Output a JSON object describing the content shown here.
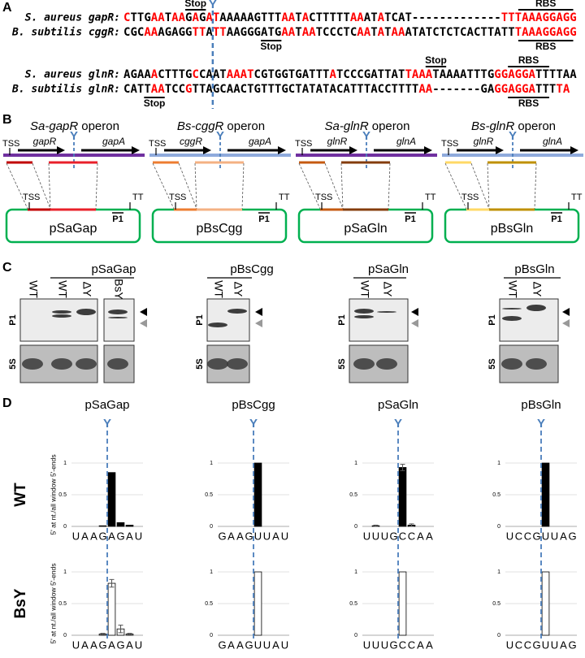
{
  "panel_a": {
    "label": "A",
    "marker": "Y",
    "groups": [
      {
        "rows": [
          {
            "name": "S. aureus gapR:",
            "segments": [
              [
                "C",
                "red"
              ],
              [
                "TTG",
                "black"
              ],
              [
                "AA",
                "red"
              ],
              [
                "T",
                "black"
              ],
              [
                "AA",
                "red"
              ],
              [
                "G",
                "black"
              ],
              [
                "A",
                "red"
              ],
              [
                "G",
                "black"
              ],
              [
                "AT",
                "red"
              ],
              [
                "AAAAAGTTT",
                "black"
              ],
              [
                "AA",
                "red"
              ],
              [
                "T",
                "black"
              ],
              [
                "A",
                "red"
              ],
              [
                "CTTTTT",
                "black"
              ],
              [
                "AA",
                "red"
              ],
              [
                "AT",
                "black"
              ],
              [
                "A",
                "red"
              ],
              [
                "TCAT",
                "black"
              ],
              [
                "-------------",
                "black"
              ],
              [
                "TTTAAAGGAGG",
                "red"
              ]
            ]
          },
          {
            "name": "B. subtilis cggR:",
            "segments": [
              [
                "CGC",
                "black"
              ],
              [
                "AA",
                "red"
              ],
              [
                "AGAGG",
                "black"
              ],
              [
                "TT",
                "red"
              ],
              [
                "A",
                "black"
              ],
              [
                "TT",
                "red"
              ],
              [
                "AAGGGATG",
                "black"
              ],
              [
                "AA",
                "red"
              ],
              [
                "T",
                "black"
              ],
              [
                "AA",
                "red"
              ],
              [
                "TCCCTC",
                "black"
              ],
              [
                "AA",
                "red"
              ],
              [
                "T",
                "black"
              ],
              [
                "A",
                "red"
              ],
              [
                "T",
                "black"
              ],
              [
                "AA",
                "red"
              ],
              [
                "ATATCTCTCACTTATT",
                "black"
              ],
              [
                "TAAAGGAGG",
                "red"
              ]
            ]
          }
        ],
        "annotations": [
          "Stop",
          "RBS",
          "RBS",
          "Stop"
        ]
      },
      {
        "rows": [
          {
            "name": "S. aureus glnR:",
            "segments": [
              [
                "AGAA",
                "black"
              ],
              [
                "A",
                "red"
              ],
              [
                "CTTTG",
                "black"
              ],
              [
                "C",
                "red"
              ],
              [
                "CAAT",
                "black"
              ],
              [
                "AAAT",
                "red"
              ],
              [
                "CGTGGTGATTT",
                "black"
              ],
              [
                "A",
                "red"
              ],
              [
                "TCCCGATTAT",
                "black"
              ],
              [
                "TAAA",
                "red"
              ],
              [
                "TAAAATTTG",
                "black"
              ],
              [
                "GGAGGA",
                "red"
              ],
              [
                "TTTTAA",
                "black"
              ]
            ]
          },
          {
            "name": "B. subtilis glnR:",
            "segments": [
              [
                "CATT",
                "black"
              ],
              [
                "AA",
                "red"
              ],
              [
                "TCC",
                "black"
              ],
              [
                "G",
                "red"
              ],
              [
                "TTAGCAACTGTTTGCTATATACATTTACCTTTT",
                "black"
              ],
              [
                "AA",
                "red"
              ],
              [
                "-------",
                "black"
              ],
              [
                "GA",
                "black"
              ],
              [
                "GGAGGA",
                "red"
              ],
              [
                "TTT",
                "black"
              ],
              [
                "TA",
                "red"
              ]
            ]
          }
        ],
        "annotations": [
          "Stop",
          "RBS",
          "RBS",
          "Stop"
        ]
      }
    ]
  },
  "panel_b": {
    "label": "B",
    "operons": [
      {
        "title_italic": "Sa-gapR",
        "title_rest": "operon",
        "tss": "TSS",
        "gene1": "gapR",
        "gene2": "gapA",
        "marker": "Y",
        "tss2": "TSS",
        "p1": "P1",
        "tt": "TT",
        "plasmid": "pSaGap",
        "line_color": "#7030a0",
        "seg1_color": "#c00000",
        "seg2_color": "#e8202a"
      },
      {
        "title_italic": "Bs-cggR",
        "title_rest": "operon",
        "tss": "TSS",
        "gene1": "cggR",
        "gene2": "gapA",
        "marker": "Y",
        "tss2": "TSS",
        "p1": "P1",
        "tt": "TT",
        "plasmid": "pBsCgg",
        "line_color": "#8faadc",
        "seg1_color": "#ed7d31",
        "seg2_color": "#f4b183"
      },
      {
        "title_italic": "Sa-glnR",
        "title_rest": "operon",
        "tss": "TSS",
        "gene1": "glnR",
        "gene2": "glnA",
        "marker": "Y",
        "tss2": "TSS",
        "p1": "P1",
        "tt": "TT",
        "plasmid": "pSaGln",
        "line_color": "#7030a0",
        "seg1_color": "#c55a11",
        "seg2_color": "#843c0c"
      },
      {
        "title_italic": "Bs-glnR",
        "title_rest": "operon",
        "tss": "TSS",
        "gene1": "glnR",
        "gene2": "glnA",
        "marker": "Y",
        "tss2": "TSS",
        "p1": "P1",
        "tt": "TT",
        "plasmid": "pBsGln",
        "line_color": "#8faadc",
        "seg1_color": "#ffd966",
        "seg2_color": "#bf9000"
      }
    ]
  },
  "panel_c": {
    "label": "C",
    "blots": [
      {
        "title": "pSaGap",
        "lanes": [
          "WT",
          "WT",
          "ΔY",
          "BsY"
        ],
        "p1": "P1",
        "s5": "5S"
      },
      {
        "title": "pBsCgg",
        "lanes": [
          "WT",
          "ΔY"
        ],
        "p1": "P1",
        "s5": "5S"
      },
      {
        "title": "pSaGln",
        "lanes": [
          "WT",
          "ΔY"
        ],
        "p1": "P1",
        "s5": "5S"
      },
      {
        "title": "pBsGln",
        "lanes": [
          "WT",
          "ΔY"
        ],
        "p1": "P1",
        "s5": "5S"
      }
    ]
  },
  "panel_d": {
    "label": "D",
    "row_labels": [
      "WT",
      "BsY"
    ],
    "y_label": "5' at nt./all window 5'-ends",
    "ylim": [
      0,
      1
    ],
    "yticks": [
      0,
      0.5,
      1
    ],
    "grid": true,
    "columns": [
      {
        "title": "pSaGap",
        "marker": "Y",
        "charts": [
          {
            "type": "bar",
            "categories": [
              "U",
              "A",
              "A",
              "G",
              "A",
              "G",
              "A",
              "U"
            ],
            "values": [
              0,
              0,
              0,
              0.01,
              0.85,
              0.06,
              0.02,
              0
            ],
            "color": "#000000"
          },
          {
            "type": "bar",
            "categories": [
              "U",
              "A",
              "A",
              "G",
              "A",
              "G",
              "A",
              "U"
            ],
            "values": [
              0,
              0,
              0,
              0.02,
              0.82,
              0.1,
              0.02,
              0
            ],
            "errors": [
              0,
              0,
              0,
              0.01,
              0.06,
              0.06,
              0.01,
              0
            ],
            "color": "#ffffff"
          }
        ]
      },
      {
        "title": "pBsCgg",
        "marker": "Y",
        "charts": [
          {
            "type": "bar",
            "categories": [
              "G",
              "A",
              "A",
              "G",
              "U",
              "U",
              "A",
              "U"
            ],
            "values": [
              0,
              0,
              0,
              0,
              1,
              0,
              0,
              0
            ],
            "color": "#000000"
          },
          {
            "type": "bar",
            "categories": [
              "G",
              "A",
              "A",
              "G",
              "U",
              "U",
              "A",
              "U"
            ],
            "values": [
              0,
              0,
              0,
              0,
              1,
              0,
              0,
              0
            ],
            "color": "#ffffff"
          }
        ]
      },
      {
        "title": "pSaGln",
        "marker": "Y",
        "charts": [
          {
            "type": "bar",
            "categories": [
              "U",
              "U",
              "U",
              "G",
              "C",
              "C",
              "A",
              "A"
            ],
            "values": [
              0,
              0.01,
              0,
              0,
              0.93,
              0.02,
              0,
              0
            ],
            "errors": [
              0,
              0.01,
              0,
              0,
              0.05,
              0.02,
              0,
              0
            ],
            "color": "#000000"
          },
          {
            "type": "bar",
            "categories": [
              "U",
              "U",
              "U",
              "G",
              "C",
              "C",
              "A",
              "A"
            ],
            "values": [
              0,
              0,
              0,
              0,
              1,
              0,
              0,
              0
            ],
            "color": "#ffffff"
          }
        ]
      },
      {
        "title": "pBsGln",
        "marker": "Y",
        "charts": [
          {
            "type": "bar",
            "categories": [
              "U",
              "C",
              "C",
              "G",
              "U",
              "U",
              "A",
              "G"
            ],
            "values": [
              0,
              0,
              0,
              0,
              1,
              0,
              0,
              0
            ],
            "color": "#000000"
          },
          {
            "type": "bar",
            "categories": [
              "U",
              "C",
              "C",
              "G",
              "U",
              "U",
              "A",
              "G"
            ],
            "values": [
              0,
              0,
              0,
              0,
              1,
              0,
              0,
              0
            ],
            "color": "#ffffff"
          }
        ]
      }
    ]
  }
}
